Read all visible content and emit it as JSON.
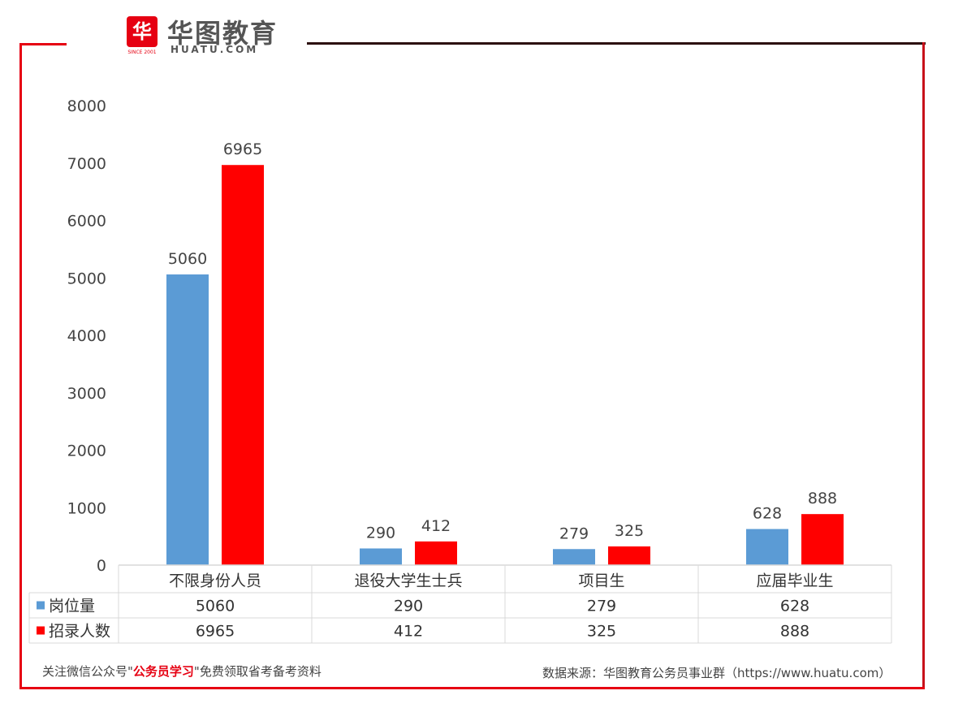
{
  "logo": {
    "badge": "华",
    "since": "SINCE 2001",
    "name_cn": "华图教育",
    "name_en": "HUATU.COM"
  },
  "colors": {
    "series1": "#5b9bd5",
    "series2": "#ff0000",
    "accent": "#e60012"
  },
  "chart_data": {
    "type": "bar",
    "categories": [
      "不限身份人员",
      "退役大学生士兵",
      "项目生",
      "应届毕业生"
    ],
    "series": [
      {
        "name": "岗位量",
        "values": [
          5060,
          290,
          279,
          628
        ],
        "color": "#5b9bd5"
      },
      {
        "name": "招录人数",
        "values": [
          6965,
          412,
          325,
          888
        ],
        "color": "#ff0000"
      }
    ],
    "ylim": [
      0,
      8000
    ],
    "yticks": [
      0,
      1000,
      2000,
      3000,
      4000,
      5000,
      6000,
      7000,
      8000
    ],
    "grid": false,
    "legend": "data table below chart"
  },
  "footer": {
    "left_prefix": "关注微信公众号\"",
    "left_highlight": "公务员学习",
    "left_suffix": "\"免费领取省考备考资料",
    "right": "数据来源：华图教育公务员事业群（https://www.huatu.com）"
  }
}
